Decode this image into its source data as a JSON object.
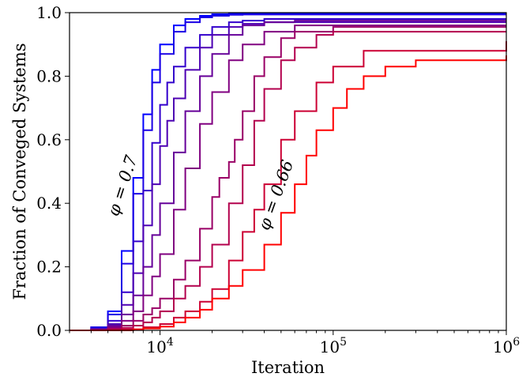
{
  "chart_data": {
    "type": "line",
    "xlabel": "Iteration",
    "ylabel": "Fraction of Conveged Systems",
    "xscale": "log",
    "xlim": [
      3000,
      1000000
    ],
    "ylim": [
      0.0,
      1.0
    ],
    "grid": false,
    "legend": "none",
    "x_ticks": [
      {
        "value": 10000,
        "base": "10",
        "exp": "4"
      },
      {
        "value": 100000,
        "base": "10",
        "exp": "5"
      },
      {
        "value": 1000000,
        "base": "10",
        "exp": "6"
      }
    ],
    "y_ticks": [
      "0.0",
      "0.2",
      "0.4",
      "0.6",
      "0.8",
      "1.0"
    ],
    "annotations": [
      {
        "text": "φ = 0.7",
        "near_x": 6500,
        "near_y": 0.45,
        "rotation_deg": -72
      },
      {
        "text": "φ = 0.66",
        "near_x": 50000,
        "near_y": 0.42,
        "rotation_deg": -70
      }
    ],
    "series": [
      {
        "color": "#0000ff",
        "x": [
          3000,
          4000,
          5000,
          6000,
          7000,
          8000,
          9000,
          10000,
          12000,
          14000,
          17000,
          20000,
          25000,
          30000,
          40000,
          60000,
          100000,
          1000000
        ],
        "y": [
          0,
          0.01,
          0.06,
          0.25,
          0.48,
          0.68,
          0.82,
          0.9,
          0.96,
          0.98,
          0.99,
          0.995,
          0.997,
          0.998,
          0.998,
          0.998,
          0.998,
          0.998
        ]
      },
      {
        "color": "#1a00e5",
        "x": [
          3000,
          4000,
          5000,
          6000,
          7000,
          8000,
          9000,
          10000,
          12000,
          14000,
          17000,
          20000,
          25000,
          30000,
          40000,
          60000,
          100000,
          1000000
        ],
        "y": [
          0,
          0.01,
          0.05,
          0.21,
          0.43,
          0.63,
          0.78,
          0.87,
          0.94,
          0.97,
          0.985,
          0.99,
          0.993,
          0.994,
          0.994,
          0.994,
          0.994,
          0.994
        ]
      },
      {
        "color": "#3300cc",
        "x": [
          3000,
          4000,
          5000,
          6000,
          7000,
          8000,
          9000,
          10000,
          11000,
          12000,
          14000,
          17000,
          20000,
          25000,
          30000,
          40000,
          60000,
          100000,
          1000000
        ],
        "y": [
          0,
          0.005,
          0.03,
          0.12,
          0.28,
          0.44,
          0.59,
          0.71,
          0.78,
          0.83,
          0.89,
          0.93,
          0.955,
          0.97,
          0.975,
          0.98,
          0.98,
          0.98,
          0.98
        ]
      },
      {
        "color": "#4d00b3",
        "x": [
          3000,
          4000,
          5000,
          6000,
          7000,
          8000,
          9000,
          10000,
          11000,
          12000,
          14000,
          17000,
          20000,
          25000,
          30000,
          40000,
          60000,
          100000,
          1000000
        ],
        "y": [
          0,
          0.004,
          0.02,
          0.08,
          0.18,
          0.33,
          0.46,
          0.58,
          0.66,
          0.73,
          0.82,
          0.89,
          0.93,
          0.955,
          0.965,
          0.97,
          0.97,
          0.97,
          0.97
        ]
      },
      {
        "color": "#660099",
        "x": [
          3000,
          4000,
          5000,
          6000,
          7000,
          8000,
          9000,
          10000,
          12000,
          14000,
          17000,
          20000,
          25000,
          30000,
          40000,
          60000,
          100000,
          1000000
        ],
        "y": [
          0,
          0.003,
          0.015,
          0.05,
          0.11,
          0.2,
          0.3,
          0.4,
          0.56,
          0.69,
          0.8,
          0.87,
          0.93,
          0.96,
          0.97,
          0.975,
          0.975,
          0.975
        ]
      },
      {
        "color": "#800080",
        "x": [
          3000,
          4000,
          5000,
          6000,
          7000,
          8000,
          9000,
          10000,
          12000,
          14000,
          17000,
          20000,
          25000,
          30000,
          40000,
          60000,
          100000,
          1000000
        ],
        "y": [
          0,
          0.002,
          0.01,
          0.03,
          0.06,
          0.11,
          0.17,
          0.24,
          0.38,
          0.51,
          0.65,
          0.75,
          0.85,
          0.9,
          0.94,
          0.96,
          0.96,
          0.96
        ]
      },
      {
        "color": "#990066",
        "x": [
          3000,
          4000,
          5000,
          6000,
          7000,
          8000,
          9000,
          10000,
          12000,
          14000,
          17000,
          20000,
          22000,
          25000,
          27000,
          30000,
          35000,
          40000,
          50000,
          60000,
          100000,
          1000000
        ],
        "y": [
          0,
          0.001,
          0.005,
          0.015,
          0.03,
          0.05,
          0.07,
          0.1,
          0.16,
          0.22,
          0.32,
          0.42,
          0.48,
          0.53,
          0.6,
          0.69,
          0.8,
          0.86,
          0.92,
          0.94,
          0.955,
          0.955
        ]
      },
      {
        "color": "#b3004d",
        "x": [
          3000,
          5000,
          6000,
          7000,
          8000,
          9000,
          10000,
          12000,
          14000,
          17000,
          20000,
          25000,
          30000,
          35000,
          40000,
          50000,
          60000,
          80000,
          100000,
          1000000
        ],
        "y": [
          0,
          0.003,
          0.008,
          0.015,
          0.025,
          0.04,
          0.06,
          0.1,
          0.14,
          0.2,
          0.27,
          0.4,
          0.52,
          0.66,
          0.76,
          0.85,
          0.89,
          0.93,
          0.94,
          0.94
        ]
      },
      {
        "color": "#cc0033",
        "x": [
          3000,
          6000,
          8000,
          10000,
          12000,
          14000,
          17000,
          20000,
          25000,
          30000,
          35000,
          40000,
          50000,
          60000,
          80000,
          100000,
          150000,
          1000000
        ],
        "y": [
          0,
          0.003,
          0.01,
          0.02,
          0.04,
          0.06,
          0.09,
          0.13,
          0.22,
          0.31,
          0.38,
          0.46,
          0.6,
          0.69,
          0.78,
          0.83,
          0.88,
          0.91
        ]
      },
      {
        "color": "#ff0000",
        "x": [
          3000,
          7000,
          8000,
          10000,
          12000,
          14000,
          17000,
          20000,
          25000,
          30000,
          40000,
          50000,
          60000,
          70000,
          80000,
          100000,
          120000,
          150000,
          200000,
          300000,
          1000000
        ],
        "y": [
          0,
          0.003,
          0.006,
          0.012,
          0.025,
          0.04,
          0.065,
          0.1,
          0.14,
          0.19,
          0.27,
          0.37,
          0.46,
          0.55,
          0.63,
          0.7,
          0.76,
          0.8,
          0.83,
          0.85,
          0.865
        ]
      }
    ]
  }
}
